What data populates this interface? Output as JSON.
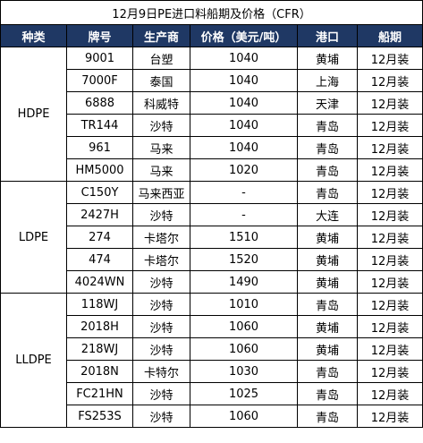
{
  "title": "12月9日PE进口料船期及价格（CFR）",
  "headers": [
    "种类",
    "牌号",
    "生产商",
    "价格（美元/吨）",
    "港口",
    "船期"
  ],
  "groups": [
    {
      "type": "HDPE",
      "rows": [
        {
          "grade": "9001",
          "producer": "台塑",
          "price": "1040",
          "port": "黄埔",
          "ship": "12月装"
        },
        {
          "grade": "7000F",
          "producer": "泰国",
          "price": "1040",
          "port": "上海",
          "ship": "12月装"
        },
        {
          "grade": "6888",
          "producer": "科威特",
          "price": "1040",
          "port": "天津",
          "ship": "12月装"
        },
        {
          "grade": "TR144",
          "producer": "沙特",
          "price": "1040",
          "port": "青岛",
          "ship": "12月装"
        },
        {
          "grade": "961",
          "producer": "马来",
          "price": "1040",
          "port": "青岛",
          "ship": "12月装"
        },
        {
          "grade": "HM5000",
          "producer": "马来",
          "price": "1020",
          "port": "青岛",
          "ship": "12月装"
        }
      ]
    },
    {
      "type": "LDPE",
      "rows": [
        {
          "grade": "C150Y",
          "producer": "马来西亚",
          "price": "-",
          "port": "青岛",
          "ship": "12月装"
        },
        {
          "grade": "2427H",
          "producer": "沙特",
          "price": "-",
          "port": "大连",
          "ship": "12月装"
        },
        {
          "grade": "274",
          "producer": "卡塔尔",
          "price": "1510",
          "port": "黄埔",
          "ship": "12月装"
        },
        {
          "grade": "474",
          "producer": "卡塔尔",
          "price": "1520",
          "port": "黄埔",
          "ship": "12月装"
        },
        {
          "grade": "4024WN",
          "producer": "沙特",
          "price": "1490",
          "port": "黄埔",
          "ship": "12月装"
        }
      ]
    },
    {
      "type": "LLDPE",
      "rows": [
        {
          "grade": "118WJ",
          "producer": "沙特",
          "price": "1010",
          "port": "青岛",
          "ship": "12月装"
        },
        {
          "grade": "2018H",
          "producer": "沙特",
          "price": "1060",
          "port": "黄埔",
          "ship": "12月装"
        },
        {
          "grade": "218WJ",
          "producer": "沙特",
          "price": "1060",
          "port": "黄埔",
          "ship": "12月装"
        },
        {
          "grade": "2018N",
          "producer": "卡特尔",
          "price": "1030",
          "port": "青岛",
          "ship": "12月装"
        },
        {
          "grade": "FC21HN",
          "producer": "沙特",
          "price": "1025",
          "port": "青岛",
          "ship": "12月装"
        },
        {
          "grade": "FS253S",
          "producer": "沙特",
          "price": "1060",
          "port": "青岛",
          "ship": "12月装"
        }
      ]
    }
  ]
}
